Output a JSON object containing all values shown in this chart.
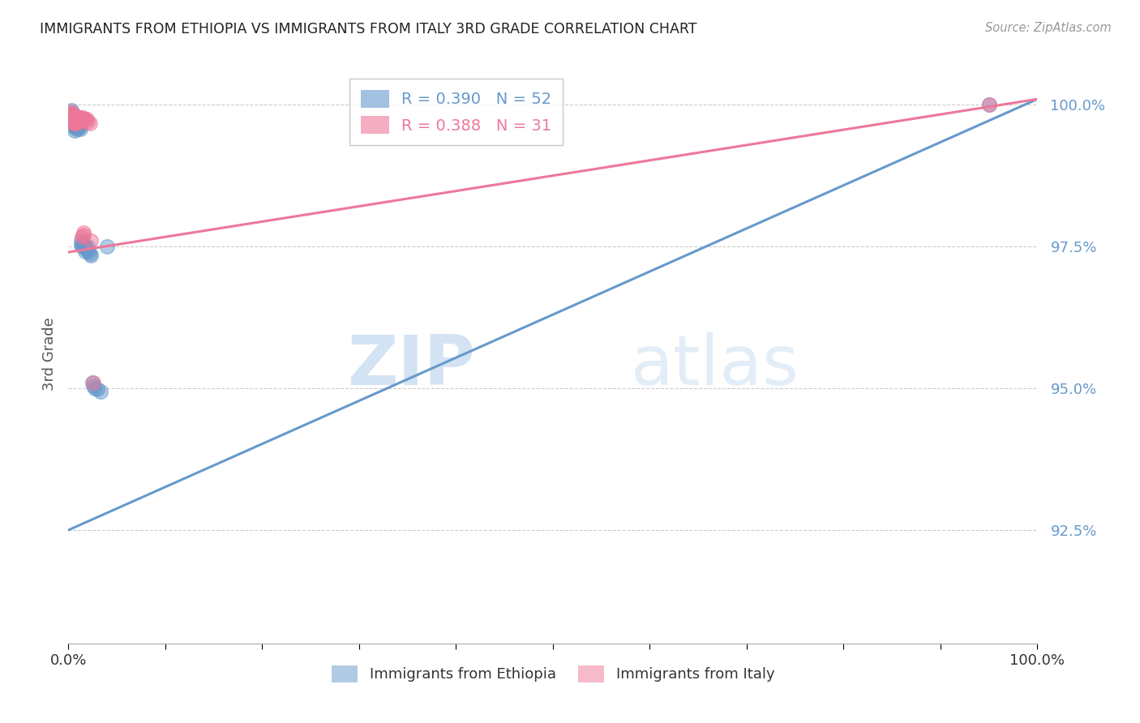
{
  "title": "IMMIGRANTS FROM ETHIOPIA VS IMMIGRANTS FROM ITALY 3RD GRADE CORRELATION CHART",
  "source": "Source: ZipAtlas.com",
  "ylabel": "3rd Grade",
  "ylabel_ticks_labels": [
    "100.0%",
    "97.5%",
    "95.0%",
    "92.5%"
  ],
  "ylabel_ticks_values": [
    1.0,
    0.975,
    0.95,
    0.925
  ],
  "xlim": [
    0.0,
    1.0
  ],
  "ylim": [
    0.905,
    1.007
  ],
  "blue_color": "#6699cc",
  "pink_color": "#ee7799",
  "blue_label": "Immigrants from Ethiopia",
  "pink_label": "Immigrants from Italy",
  "legend_blue_text": "R = 0.390   N = 52",
  "legend_pink_text": "R = 0.388   N = 31",
  "blue_trendline_x": [
    0.0,
    1.0
  ],
  "blue_trendline_y": [
    0.925,
    1.001
  ],
  "pink_trendline_x": [
    0.0,
    1.0
  ],
  "pink_trendline_y": [
    0.974,
    1.001
  ],
  "watermark_zip": "ZIP",
  "watermark_atlas": "atlas",
  "grid_color": "#cccccc",
  "background_color": "#ffffff",
  "blue_scatter_x": [
    0.003,
    0.003,
    0.004,
    0.004,
    0.004,
    0.005,
    0.005,
    0.005,
    0.005,
    0.006,
    0.006,
    0.006,
    0.006,
    0.006,
    0.006,
    0.007,
    0.007,
    0.007,
    0.007,
    0.008,
    0.008,
    0.008,
    0.009,
    0.009,
    0.009,
    0.01,
    0.01,
    0.011,
    0.011,
    0.012,
    0.012,
    0.013,
    0.013,
    0.014,
    0.015,
    0.015,
    0.016,
    0.017,
    0.017,
    0.018,
    0.019,
    0.02,
    0.021,
    0.022,
    0.023,
    0.025,
    0.026,
    0.027,
    0.03,
    0.033,
    0.04,
    0.95
  ],
  "blue_scatter_y": [
    0.999,
    0.998,
    0.9985,
    0.9975,
    0.997,
    0.9985,
    0.9978,
    0.9972,
    0.9965,
    0.998,
    0.9975,
    0.997,
    0.9965,
    0.996,
    0.9955,
    0.9975,
    0.997,
    0.9965,
    0.996,
    0.9975,
    0.9968,
    0.996,
    0.9972,
    0.9965,
    0.9958,
    0.997,
    0.9963,
    0.9968,
    0.996,
    0.9965,
    0.9958,
    0.976,
    0.9752,
    0.9755,
    0.9758,
    0.975,
    0.9755,
    0.975,
    0.9742,
    0.9748,
    0.9745,
    0.975,
    0.9742,
    0.9738,
    0.9735,
    0.951,
    0.9505,
    0.95,
    0.9498,
    0.9495,
    0.975,
    1.0
  ],
  "pink_scatter_x": [
    0.003,
    0.003,
    0.004,
    0.004,
    0.005,
    0.005,
    0.005,
    0.006,
    0.006,
    0.007,
    0.007,
    0.008,
    0.008,
    0.009,
    0.01,
    0.01,
    0.011,
    0.012,
    0.013,
    0.014,
    0.014,
    0.015,
    0.016,
    0.016,
    0.017,
    0.019,
    0.02,
    0.022,
    0.023,
    0.026,
    0.95
  ],
  "pink_scatter_y": [
    0.9988,
    0.998,
    0.9985,
    0.9978,
    0.998,
    0.9975,
    0.9968,
    0.9975,
    0.9968,
    0.9978,
    0.9972,
    0.9975,
    0.9968,
    0.997,
    0.9978,
    0.9972,
    0.9978,
    0.9972,
    0.9978,
    0.9972,
    0.9768,
    0.9978,
    0.9775,
    0.977,
    0.9975,
    0.9975,
    0.997,
    0.9968,
    0.976,
    0.951,
    1.0
  ]
}
